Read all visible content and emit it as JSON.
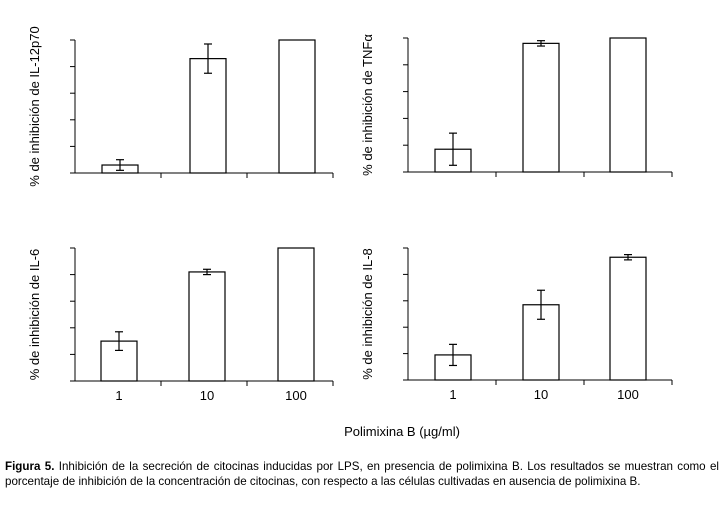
{
  "figure": {
    "x_title": "Polimixina B (µg/ml)",
    "caption_label": "Figura 5.",
    "caption_text": " Inhibición de la secreción de citocinas inducidas por LPS, en presencia de polimixina B. Los resultados se muestran como el porcentaje de inhibición de la concentración de citocinas, con respecto a las células cultivadas en ausencia de polimixina B."
  },
  "chart_data": [
    {
      "type": "bar",
      "categories": [
        "1",
        "10",
        "100"
      ],
      "values": [
        6,
        86,
        100
      ],
      "error": [
        4,
        11,
        0
      ],
      "ylabel": "% de inhibición de IL-12p70",
      "ylim": [
        0,
        100
      ],
      "yticks": 5,
      "grid": false,
      "show_tick_labels": false
    },
    {
      "type": "bar",
      "categories": [
        "1",
        "10",
        "100"
      ],
      "values": [
        17,
        96,
        100
      ],
      "error": [
        12,
        2,
        0
      ],
      "ylabel": "% de inhibición de TNFα",
      "ylim": [
        0,
        100
      ],
      "yticks": 5,
      "grid": false,
      "show_tick_labels": false
    },
    {
      "type": "bar",
      "categories": [
        "1",
        "10",
        "100"
      ],
      "values": [
        30,
        82,
        100
      ],
      "error": [
        7,
        2,
        0
      ],
      "ylabel": "% de inhibición de IL-6",
      "ylim": [
        0,
        100
      ],
      "yticks": 5,
      "grid": false,
      "show_tick_labels": true
    },
    {
      "type": "bar",
      "categories": [
        "1",
        "10",
        "100"
      ],
      "values": [
        19,
        57,
        93
      ],
      "error": [
        8,
        11,
        2
      ],
      "ylabel": "% de inhibición de IL-8",
      "ylim": [
        0,
        100
      ],
      "yticks": 5,
      "grid": false,
      "show_tick_labels": true
    }
  ]
}
